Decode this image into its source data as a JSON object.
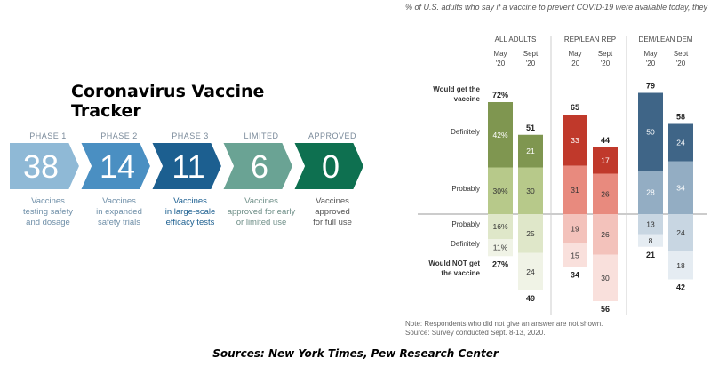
{
  "tracker": {
    "title": "Coronavirus Vaccine Tracker",
    "phases": [
      {
        "label": "PHASE 1",
        "count": "38",
        "desc1": "Vaccines",
        "desc2": "testing safety",
        "desc3": "and dosage",
        "color": "#8fb9d6",
        "text_color": "#6f8fa8"
      },
      {
        "label": "PHASE 2",
        "count": "14",
        "desc1": "Vaccines",
        "desc2": "in expanded",
        "desc3": "safety trials",
        "color": "#4a8fc2",
        "text_color": "#6f8fa8"
      },
      {
        "label": "PHASE 3",
        "count": "11",
        "desc1": "Vaccines",
        "desc2": "in large-scale",
        "desc3": "efficacy tests",
        "color": "#1c5f90",
        "text_color": "#1c5f90"
      },
      {
        "label": "LIMITED",
        "count": "6",
        "desc1": "Vaccines",
        "desc2": "approved for early",
        "desc3": "or limited use",
        "color": "#6aa394",
        "text_color": "#6f8f88"
      },
      {
        "label": "APPROVED",
        "count": "0",
        "desc1": "Vaccines",
        "desc2": "approved",
        "desc3": "for full use",
        "color": "#0e7050",
        "text_color": "#555"
      }
    ]
  },
  "chart_data": {
    "type": "bar",
    "caption": "% of U.S. adults who say if a vaccine to prevent COVID-19 were available today, they ...",
    "groups": [
      {
        "name": "ALL ADULTS",
        "colors": [
          "#7f9650",
          "#b7c98a",
          "#dfe7c9",
          "#f0f3e6"
        ]
      },
      {
        "name": "REP/LEAN REP",
        "colors": [
          "#c0392b",
          "#e88a7e",
          "#f3c2bb",
          "#f9e0dc"
        ]
      },
      {
        "name": "DEM/LEAN DEM",
        "colors": [
          "#3f6587",
          "#93adc3",
          "#c8d6e2",
          "#e5ecf2"
        ]
      }
    ],
    "categories": [
      "May '20",
      "Sept '20"
    ],
    "cat_line1": [
      "May",
      "Sept"
    ],
    "cat_line2": [
      "'20",
      "'20"
    ],
    "row_labels": [
      "Would get the vaccine",
      "Definitely",
      "Probably",
      "Probably",
      "Definitely",
      "Would NOT get the vaccine"
    ],
    "segments": [
      "Definitely (get)",
      "Probably (get)",
      "Probably (not)",
      "Definitely (not)"
    ],
    "data": [
      {
        "group": "ALL ADULTS",
        "period": "May '20",
        "get_total": "72%",
        "not_total": "27%",
        "values": [
          42,
          30,
          16,
          11
        ],
        "labels": [
          "42%",
          "30%",
          "16%",
          "11%"
        ]
      },
      {
        "group": "ALL ADULTS",
        "period": "Sept '20",
        "get_total": "51",
        "not_total": "49",
        "values": [
          21,
          30,
          25,
          24
        ],
        "labels": [
          "21",
          "30",
          "25",
          "24"
        ]
      },
      {
        "group": "REP/LEAN REP",
        "period": "May '20",
        "get_total": "65",
        "not_total": "34",
        "values": [
          33,
          31,
          19,
          15
        ],
        "labels": [
          "33",
          "31",
          "19",
          "15"
        ]
      },
      {
        "group": "REP/LEAN REP",
        "period": "Sept '20",
        "get_total": "44",
        "not_total": "56",
        "values": [
          17,
          26,
          26,
          30
        ],
        "labels": [
          "17",
          "26",
          "26",
          "30"
        ]
      },
      {
        "group": "DEM/LEAN DEM",
        "period": "May '20",
        "get_total": "79",
        "not_total": "21",
        "values": [
          50,
          28,
          13,
          8
        ],
        "labels": [
          "50",
          "28",
          "13",
          "8"
        ]
      },
      {
        "group": "DEM/LEAN DEM",
        "period": "Sept '20",
        "get_total": "58",
        "not_total": "42",
        "values": [
          24,
          34,
          24,
          18
        ],
        "labels": [
          "24",
          "34",
          "24",
          "18"
        ]
      }
    ],
    "note": "Note: Respondents who did not give an answer are not shown.",
    "source": "Source: Survey conducted Sept. 8-13, 2020."
  },
  "footer": {
    "sources": "Sources: New York Times, Pew Research Center"
  }
}
